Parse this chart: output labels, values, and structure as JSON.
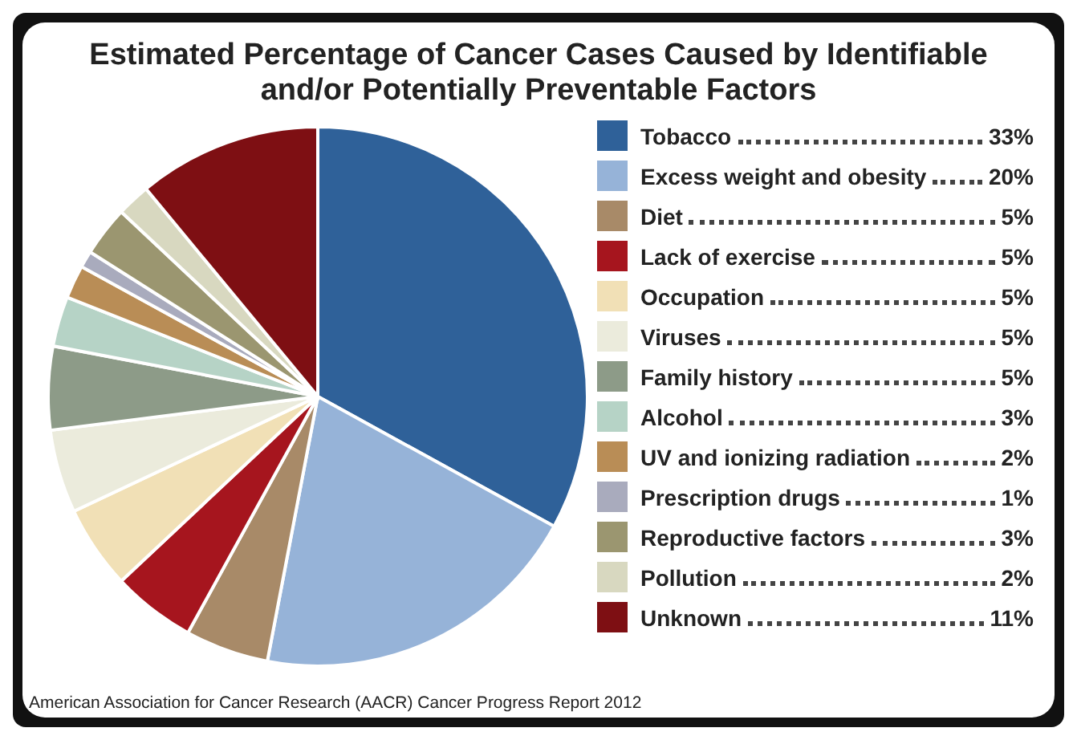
{
  "chart_data": {
    "type": "pie",
    "title": "Estimated Percentage of Cancer Cases Caused by Identifiable and/or Potentially Preventable Factors",
    "categories": [
      "Tobacco",
      "Excess weight and obesity",
      "Diet",
      "Lack of exercise",
      "Occupation",
      "Viruses",
      "Family history",
      "Alcohol",
      "UV and ionizing radiation",
      "Prescription drugs",
      "Reproductive factors",
      "Pollution",
      "Unknown"
    ],
    "values": [
      33,
      20,
      5,
      5,
      5,
      5,
      5,
      3,
      2,
      1,
      3,
      2,
      11
    ],
    "value_labels": [
      "33%",
      "20%",
      "5%",
      "5%",
      "5%",
      "5%",
      "5%",
      "3%",
      "2%",
      "1%",
      "3%",
      "2%",
      "11%"
    ],
    "colors": [
      "#2f6199",
      "#96b3d8",
      "#a88a68",
      "#a6151e",
      "#f1e0b6",
      "#ebebdc",
      "#8d9b88",
      "#b6d3c6",
      "#b98d56",
      "#a9abbd",
      "#9b9670",
      "#d8d8c0",
      "#7e0f13"
    ],
    "legend": "right",
    "annotations": [
      "American Association for Cancer Research (AACR) Cancer Progress Report 2012"
    ]
  }
}
